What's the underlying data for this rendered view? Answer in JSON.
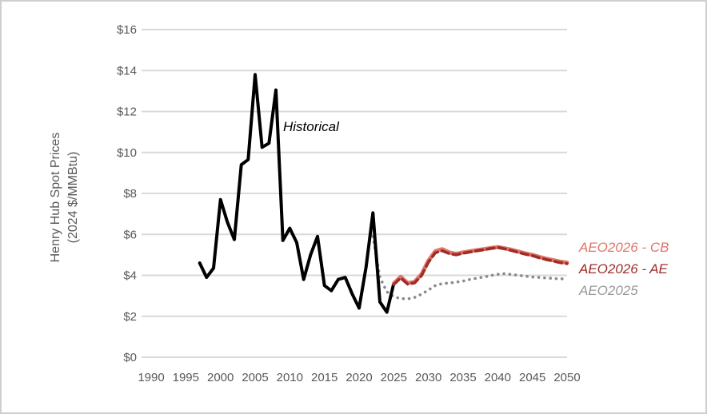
{
  "window": {
    "background": "#ffffff",
    "border_color": "#cfcfcf"
  },
  "chart_data": {
    "type": "line",
    "title": "",
    "ylabel": "Henry Hub Spot Prices (2024 $/MMBtu)",
    "ylabel_line1": "Henry Hub Spot Prices",
    "ylabel_line2": "(2024 $/MMBtu)",
    "annotation": "Historical",
    "grid": true,
    "grid_color": "#d9d9d9",
    "axis_text_color": "#595959",
    "legend_position": "right-outside",
    "y_axis": {
      "range": [
        0,
        16
      ],
      "tick_values": [
        0,
        2,
        4,
        6,
        8,
        10,
        12,
        14,
        16
      ],
      "tick_labels": [
        "$0",
        "$2",
        "$4",
        "$6",
        "$8",
        "$10",
        "$12",
        "$14",
        "$16"
      ]
    },
    "x_axis": {
      "range": [
        1990,
        2050
      ],
      "tick_values": [
        1990,
        1995,
        2000,
        2005,
        2010,
        2015,
        2020,
        2025,
        2030,
        2035,
        2040,
        2045,
        2050
      ],
      "tick_labels": [
        "1990",
        "1995",
        "2000",
        "2005",
        "2010",
        "2015",
        "2020",
        "2025",
        "2030",
        "2035",
        "2040",
        "2045",
        "2050"
      ]
    },
    "series": [
      {
        "id": "historical",
        "name": "Historical",
        "color": "#000000",
        "style": "solid",
        "width": 4,
        "start_year": 1997,
        "values": [
          4.6,
          3.9,
          4.35,
          7.7,
          6.6,
          5.75,
          9.4,
          9.65,
          13.8,
          10.25,
          10.45,
          13.05,
          5.7,
          6.3,
          5.6,
          3.8,
          5.0,
          5.9,
          3.5,
          3.25,
          3.8,
          3.9,
          3.1,
          2.4,
          4.4,
          7.05,
          2.7,
          2.2,
          3.6
        ]
      },
      {
        "id": "aeo2026-cb",
        "name": "AEO2026 - CB",
        "color": "#e0756b",
        "style": "solid",
        "width": 5,
        "start_year": 2025,
        "values": [
          3.6,
          3.93,
          3.62,
          3.68,
          4.05,
          4.72,
          5.18,
          5.28,
          5.12,
          5.05,
          5.12,
          5.18,
          5.23,
          5.28,
          5.33,
          5.38,
          5.32,
          5.25,
          5.16,
          5.07,
          5.0,
          4.9,
          4.81,
          4.74,
          4.67,
          4.62
        ]
      },
      {
        "id": "aeo2026-ae",
        "name": "AEO2026 - AE",
        "color": "#9e2d27",
        "style": "dashed",
        "width": 3.6,
        "start_year": 2025,
        "values": [
          3.55,
          3.87,
          3.57,
          3.63,
          3.98,
          4.64,
          5.1,
          5.2,
          5.06,
          5.0,
          5.08,
          5.14,
          5.2,
          5.25,
          5.31,
          5.36,
          5.29,
          5.21,
          5.12,
          5.03,
          4.96,
          4.86,
          4.77,
          4.7,
          4.62,
          4.57
        ]
      },
      {
        "id": "aeo2025",
        "name": "AEO2025",
        "color": "#8a8a8a",
        "style": "dotted",
        "width": 3.6,
        "start_year": 2022,
        "values": [
          5.9,
          3.9,
          3.2,
          2.95,
          2.87,
          2.85,
          2.92,
          3.08,
          3.28,
          3.5,
          3.6,
          3.62,
          3.67,
          3.72,
          3.8,
          3.86,
          3.92,
          3.99,
          4.05,
          4.08,
          4.04,
          4.0,
          3.96,
          3.92,
          3.9,
          3.87,
          3.85,
          3.82,
          3.85
        ]
      }
    ],
    "legend": [
      {
        "label": "AEO2026 - CB",
        "color": "#e0756b"
      },
      {
        "label": "AEO2026 - AE",
        "color": "#9e2d27"
      },
      {
        "label": "AEO2025",
        "color": "#999999"
      }
    ]
  }
}
